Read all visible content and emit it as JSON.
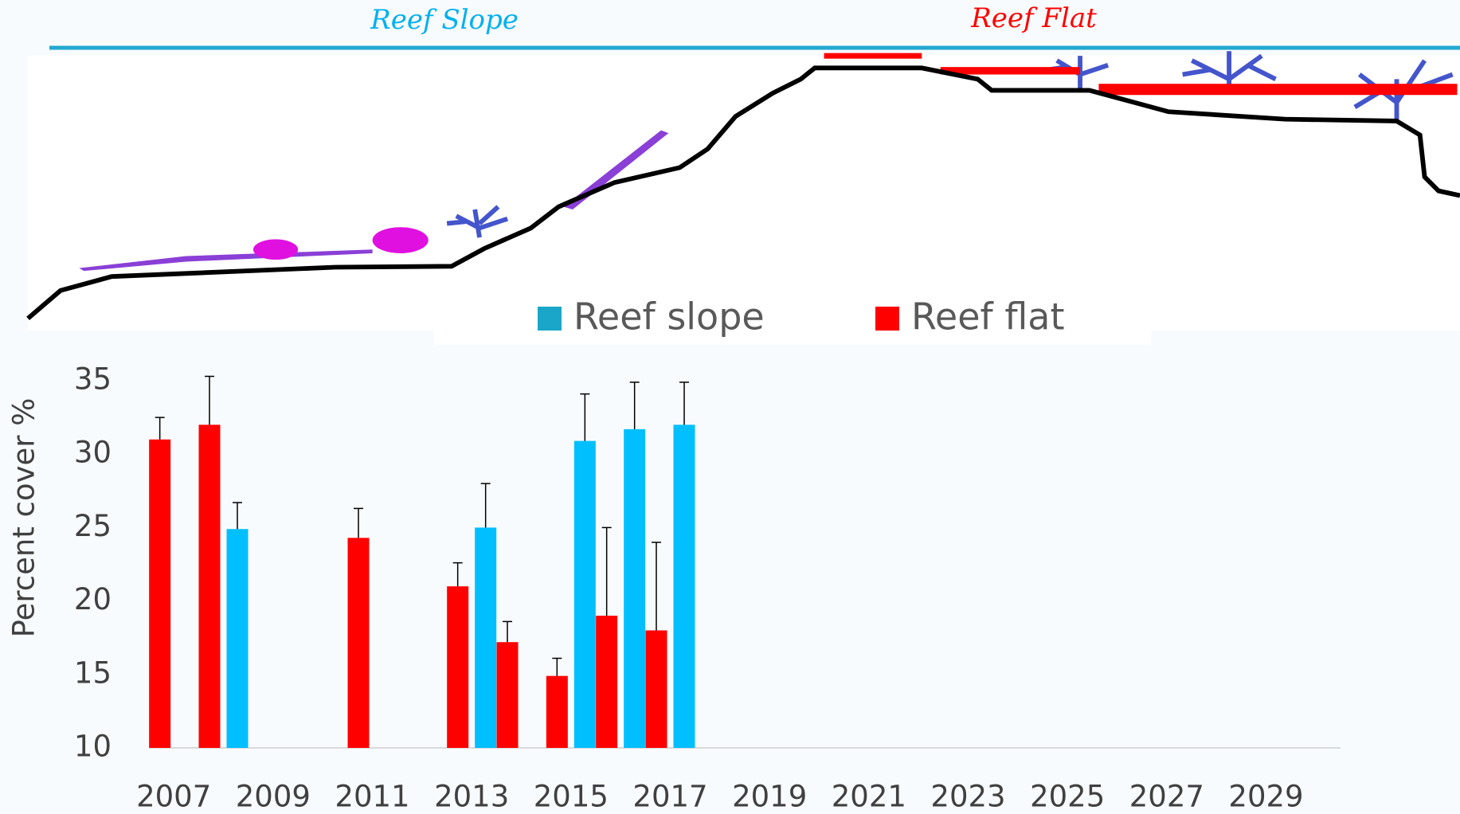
{
  "chart_data": {
    "type": "bar",
    "annotations": [
      "Reef Slope",
      "Reef Flat"
    ],
    "y_label": "Percent cover %",
    "categories": [
      "2007",
      null,
      "2009",
      null,
      "2011",
      null,
      "2013",
      null,
      "2015",
      null,
      "2017",
      null,
      "2019",
      null,
      "2021",
      null,
      "2023",
      null,
      "2025",
      null,
      "2027",
      null,
      "2029",
      null
    ],
    "series": [
      {
        "name": "Reef flat",
        "color": "#ff0000",
        "values": [
          31,
          32,
          null,
          null,
          24.3,
          null,
          21,
          17.2,
          14.9,
          19,
          18,
          null,
          null,
          null,
          null,
          null,
          null,
          null,
          null,
          null,
          null,
          null,
          null,
          null
        ],
        "errors": [
          1.5,
          3.3,
          null,
          null,
          2,
          null,
          1.6,
          1.4,
          1.2,
          6,
          6,
          null,
          null,
          null,
          null,
          null,
          null,
          null,
          null,
          null,
          null,
          null,
          null,
          null
        ]
      },
      {
        "name": "Reef slope",
        "color": "#00bfff",
        "values": [
          null,
          24.9,
          null,
          null,
          null,
          null,
          25,
          null,
          30.9,
          31.7,
          32,
          null,
          null,
          null,
          null,
          null,
          null,
          null,
          null,
          null,
          null,
          null,
          null,
          null
        ],
        "errors": [
          null,
          1.8,
          null,
          null,
          null,
          null,
          3,
          null,
          3.2,
          3.2,
          2.9,
          null,
          null,
          null,
          null,
          null,
          null,
          null,
          null,
          null,
          null,
          null,
          null,
          null
        ]
      }
    ],
    "ylim": [
      10,
      35
    ],
    "yticks": [
      10,
      15,
      20,
      25,
      30,
      35
    ]
  }
}
